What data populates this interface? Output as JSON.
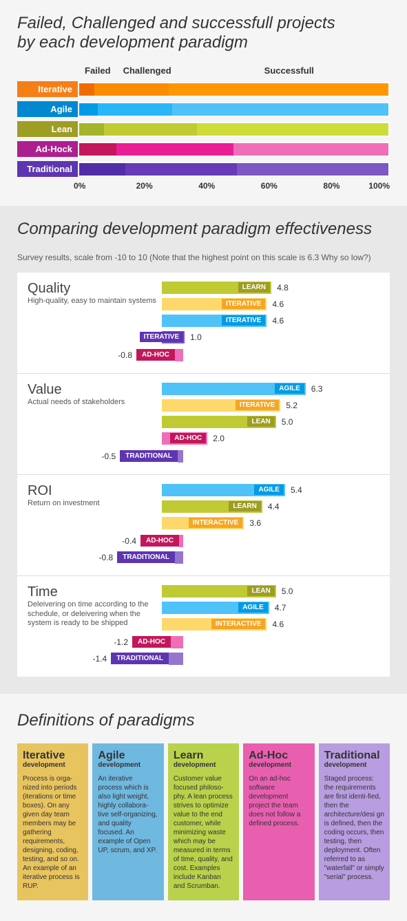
{
  "section1": {
    "title_line1": "Failed, Challenged and successfull projects",
    "title_line2": "by each development paradigm",
    "headers": {
      "failed": "Failed",
      "challenged": "Challenged",
      "successfull": "Successfull"
    },
    "rows": [
      {
        "label": "Iterative",
        "label_bg": "#f57f17",
        "failed": 5,
        "challenged": 24,
        "successfull": 71,
        "colors": [
          "#ef6c00",
          "#fb8c00",
          "#ff9800"
        ]
      },
      {
        "label": "Agile",
        "label_bg": "#0288d1",
        "failed": 6,
        "challenged": 24,
        "successfull": 70,
        "colors": [
          "#039be5",
          "#29b6f6",
          "#4fc3f7"
        ]
      },
      {
        "label": "Lean",
        "label_bg": "#9e9d24",
        "failed": 8,
        "challenged": 30,
        "successfull": 62,
        "colors": [
          "#a4b42b",
          "#c0ca33",
          "#cddc39"
        ]
      },
      {
        "label": "Ad-Hock",
        "label_bg": "#ad1f8f",
        "failed": 12,
        "challenged": 38,
        "successfull": 50,
        "colors": [
          "#c2185b",
          "#e91e95",
          "#f06eb8"
        ]
      },
      {
        "label": "Traditional",
        "label_bg": "#5e35b1",
        "failed": 15,
        "challenged": 36,
        "successfull": 49,
        "colors": [
          "#512da8",
          "#673ab7",
          "#7e57c2"
        ]
      }
    ],
    "axis": [
      "0%",
      "20%",
      "40%",
      "60%",
      "80%",
      "100%"
    ]
  },
  "section2": {
    "title": "Comparing development paradigm effectiveness",
    "subtitle": "Survey results, scale from -10 to 10 (Note that the highest point on this scale is 6.3 Why so low?)",
    "scale_max": 7,
    "metrics": [
      {
        "name": "Quality",
        "desc": "High-quality, easy to maintain systems",
        "bars": [
          {
            "val": 4.8,
            "tag": "LEARN",
            "bar": "#c0ca33",
            "tag_bg": "#9e9d24"
          },
          {
            "val": 4.6,
            "tag": "ITERATIVE",
            "bar": "#ffd86b",
            "tag_bg": "#f5a623"
          },
          {
            "val": 4.6,
            "tag": "ITERATIVE",
            "bar": "#4fc3f7",
            "tag_bg": "#039be5"
          },
          {
            "val": 1.0,
            "tag": "ITERATIVE",
            "bar": "#7e57c2",
            "tag_bg": "#5e35b1"
          }
        ],
        "neg": [
          {
            "val": "-0.8",
            "tag": "AD-HOC",
            "tag_bg": "#c2185b",
            "ext": "#f06eb8",
            "w": 12
          }
        ]
      },
      {
        "name": "Value",
        "desc": "Actual needs of stakeholders",
        "bars": [
          {
            "val": 6.3,
            "tag": "AGILE",
            "bar": "#4fc3f7",
            "tag_bg": "#039be5"
          },
          {
            "val": 5.2,
            "tag": "ITERATIVE",
            "bar": "#ffd86b",
            "tag_bg": "#f5a623"
          },
          {
            "val": 5.0,
            "tag": "LEAN",
            "bar": "#c0ca33",
            "tag_bg": "#9e9d24"
          },
          {
            "val": 2.0,
            "tag": "AD-HOC",
            "bar": "#f06eb8",
            "tag_bg": "#c2185b"
          }
        ],
        "neg": [
          {
            "val": "-0.5",
            "tag": "TRADITIONAL",
            "tag_bg": "#5e35b1",
            "ext": "#9575cd",
            "w": 8
          }
        ]
      },
      {
        "name": "ROI",
        "desc": "Return on investment",
        "bars": [
          {
            "val": 5.4,
            "tag": "AGILE",
            "bar": "#4fc3f7",
            "tag_bg": "#039be5"
          },
          {
            "val": 4.4,
            "tag": "LEARN",
            "bar": "#c0ca33",
            "tag_bg": "#9e9d24"
          },
          {
            "val": 3.6,
            "tag": "INTERACTIVE",
            "bar": "#ffd86b",
            "tag_bg": "#f5a623"
          }
        ],
        "neg": [
          {
            "val": "-0.4",
            "tag": "AD-HOC",
            "tag_bg": "#c2185b",
            "ext": "#f06eb8",
            "w": 6
          },
          {
            "val": "-0.8",
            "tag": "TRADITIONAL",
            "tag_bg": "#5e35b1",
            "ext": "#9575cd",
            "w": 12
          }
        ]
      },
      {
        "name": "Time",
        "desc": "Deleivering on time according to the schedule, or deleivering when the system is ready to be shipped",
        "bars": [
          {
            "val": 5.0,
            "tag": "LEAN",
            "bar": "#c0ca33",
            "tag_bg": "#9e9d24"
          },
          {
            "val": 4.7,
            "tag": "AGILE",
            "bar": "#4fc3f7",
            "tag_bg": "#039be5"
          },
          {
            "val": 4.6,
            "tag": "INTERACTIVE",
            "bar": "#ffd86b",
            "tag_bg": "#f5a623"
          }
        ],
        "neg": [
          {
            "val": "-1.2",
            "tag": "AD-HOC",
            "tag_bg": "#c2185b",
            "ext": "#f06eb8",
            "w": 18
          },
          {
            "val": "-1.4",
            "tag": "TRADITIONAL",
            "tag_bg": "#5e35b1",
            "ext": "#9575cd",
            "w": 21
          }
        ]
      }
    ]
  },
  "section3": {
    "title": "Definitions of paradigms",
    "cards": [
      {
        "title": "Iterative",
        "sub": "development",
        "bg": "#e8c45f",
        "text": "Process is orga-nized into periods (iterations or time boxes). On any given day team members may be gathering requirements, designing, coding, testing, and so on. An example of an iterative process is RUP."
      },
      {
        "title": "Agile",
        "sub": "development",
        "bg": "#6fb8e0",
        "text": "An iterative process which is also light weight, highly collabora-tive self-organizing, and quality focused. An example of Open UP, scrum, and XP."
      },
      {
        "title": "Learn",
        "sub": "development",
        "bg": "#b9d24b",
        "text": "Customer value focused philoso-phy. A lean process strives to optimize value to the end customer, while minimizing waste which may be measured in terms of time, quality, and cost. Examples include Kanban and Scrumban."
      },
      {
        "title": "Ad-Hoc",
        "sub": "development",
        "bg": "#e85fb0",
        "text": "On an ad-hoc software development project the team does not follow a defined process."
      },
      {
        "title": "Traditional",
        "sub": "development",
        "bg": "#b89de0",
        "text": "Staged process: the requirements are first identi-fied, then the architecture/desi gn is defined, then the coding occurs, then testing, then deployment. Often referred to as \"waterfall\" or simply \"serial\" process."
      }
    ]
  }
}
